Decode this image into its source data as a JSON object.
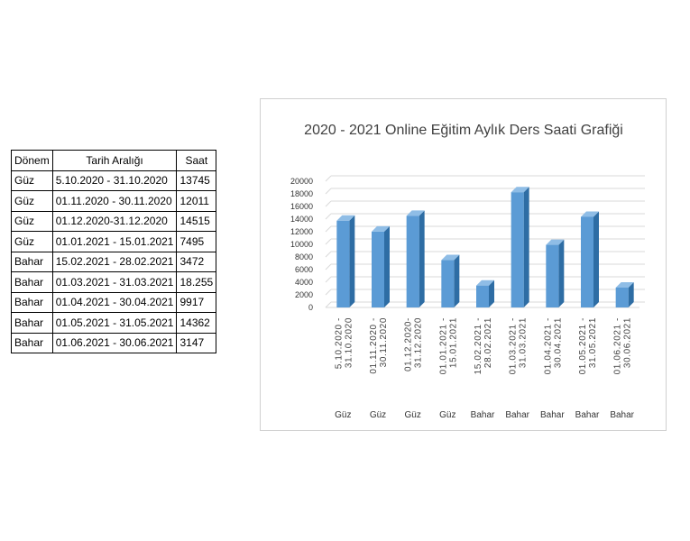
{
  "table": {
    "headers": [
      "Dönem",
      "Tarih Aralığı",
      "Saat"
    ],
    "rows": [
      [
        "Güz",
        "5.10.2020 - 31.10.2020",
        "13745"
      ],
      [
        "Güz",
        "01.11.2020 - 30.11.2020",
        "12011"
      ],
      [
        "Güz",
        "01.12.2020-31.12.2020",
        "14515"
      ],
      [
        "Güz",
        "01.01.2021 - 15.01.2021",
        "7495"
      ],
      [
        "Bahar",
        "15.02.2021 - 28.02.2021",
        "3472"
      ],
      [
        "Bahar",
        "01.03.2021 - 31.03.2021",
        "18.255"
      ],
      [
        "Bahar",
        "01.04.2021 - 30.04.2021",
        "9917"
      ],
      [
        "Bahar",
        "01.05.2021 - 31.05.2021",
        "14362"
      ],
      [
        "Bahar",
        "01.06.2021 - 30.06.2021",
        "3147"
      ]
    ]
  },
  "chart_data": {
    "type": "bar",
    "title": "2020 - 2021 Online Eğitim Aylık Ders Saati Grafiği",
    "categories": [
      "5.10.2020 - 31.10.2020",
      "01.11.2020 - 30.11.2020",
      "01.12.2020-31.12.2020",
      "01.01.2021 - 15.01.2021",
      "15.02.2021 - 28.02.2021",
      "01.03.2021 - 31.03.2021",
      "01.04.2021 - 30.04.2021",
      "01.05.2021 - 31.05.2021",
      "01.06.2021 - 30.06.2021"
    ],
    "groups": [
      "Güz",
      "Güz",
      "Güz",
      "Güz",
      "Bahar",
      "Bahar",
      "Bahar",
      "Bahar",
      "Bahar"
    ],
    "values": [
      13745,
      12011,
      14515,
      7495,
      3472,
      18255,
      9917,
      14362,
      3147
    ],
    "yticks": [
      0,
      2000,
      4000,
      6000,
      8000,
      10000,
      12000,
      14000,
      16000,
      18000,
      20000
    ],
    "ylim": [
      0,
      20000
    ],
    "grid": true,
    "legend": "none",
    "colors": {
      "bar": "#5b9bd5",
      "bar_side": "#2e6da4",
      "bar_top": "#8fbde6"
    }
  }
}
